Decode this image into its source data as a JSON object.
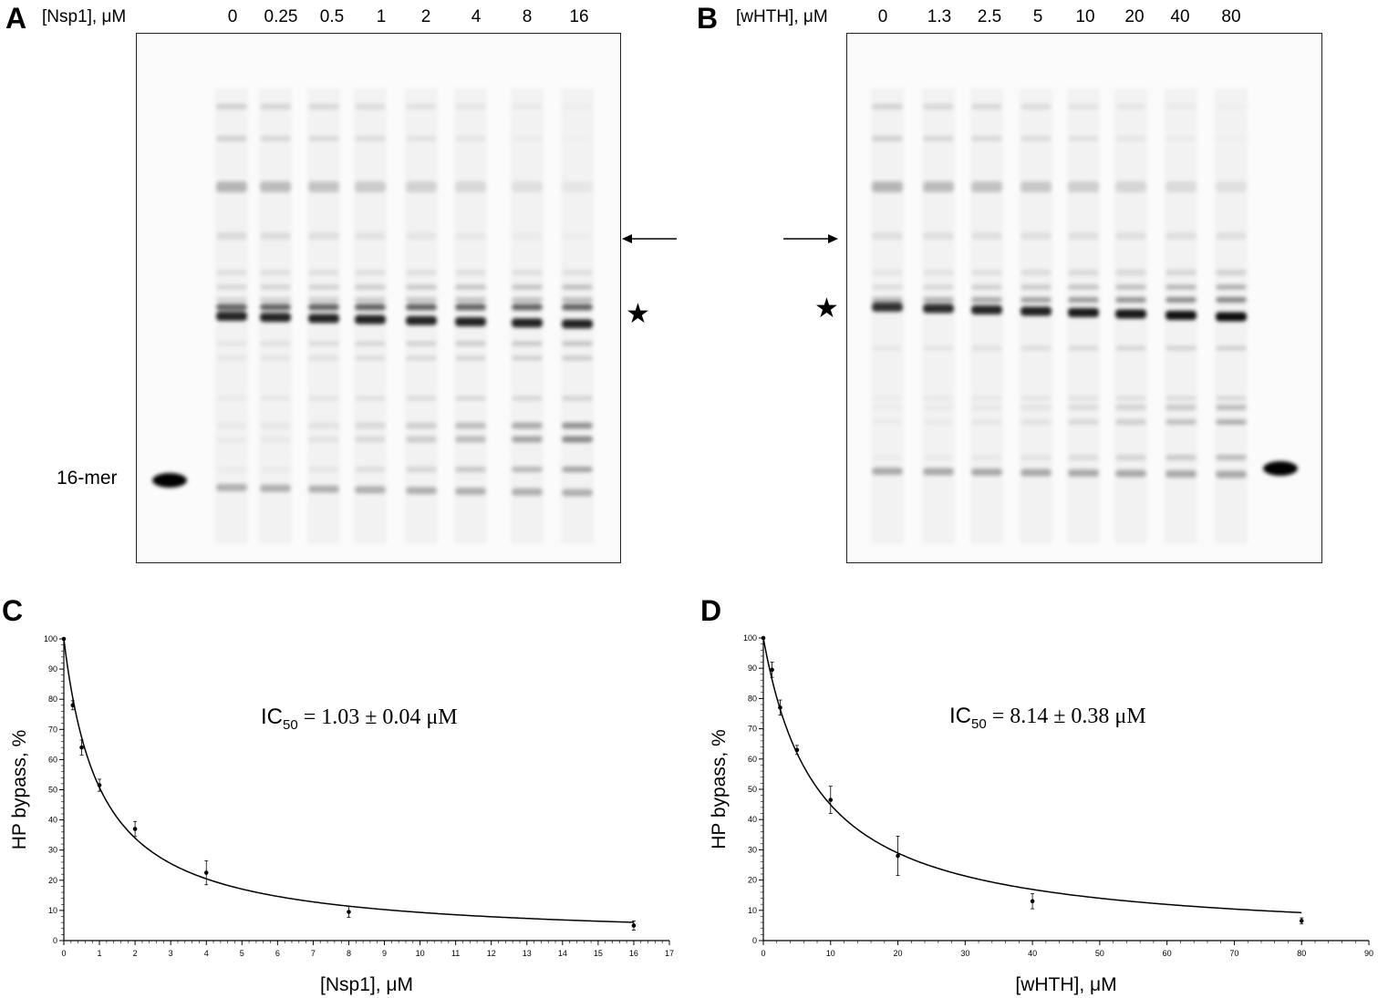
{
  "panels": {
    "A": {
      "letter": "A",
      "conc_label": "[Nsp1], μM",
      "lanes": [
        "0",
        "0.25",
        "0.5",
        "1",
        "2",
        "4",
        "8",
        "16"
      ],
      "marker_label": "16-mer",
      "star": "★"
    },
    "B": {
      "letter": "B",
      "conc_label": "[wHTH], μM",
      "lanes": [
        "0",
        "1.3",
        "2.5",
        "5",
        "10",
        "20",
        "40",
        "80"
      ],
      "star": "★"
    },
    "C": {
      "letter": "C"
    },
    "D": {
      "letter": "D"
    }
  },
  "chart_data": [
    {
      "panel": "C",
      "type": "scatter",
      "xlabel": "[Nsp1], μM",
      "ylabel": "HP bypass, %",
      "xlim": [
        0,
        17
      ],
      "ylim": [
        0,
        100
      ],
      "xticks": [
        0,
        1,
        2,
        3,
        4,
        5,
        6,
        7,
        8,
        9,
        10,
        11,
        12,
        13,
        14,
        15,
        16,
        17
      ],
      "yticks": [
        0,
        10,
        20,
        30,
        40,
        50,
        60,
        70,
        80,
        90,
        100
      ],
      "annotation": {
        "prefix": "IC",
        "subscript": "50",
        "suffix": " = 1.03 ± 0.04 μM"
      },
      "ic50": 1.03,
      "points": [
        {
          "x": 0,
          "y": 100,
          "err": 0
        },
        {
          "x": 0.25,
          "y": 78,
          "err": 1.5
        },
        {
          "x": 0.5,
          "y": 64,
          "err": 2.5
        },
        {
          "x": 1,
          "y": 51.5,
          "err": 2
        },
        {
          "x": 2,
          "y": 37,
          "err": 2.5
        },
        {
          "x": 4,
          "y": 22.5,
          "err": 4
        },
        {
          "x": 8,
          "y": 9.5,
          "err": 1.8
        },
        {
          "x": 16,
          "y": 5,
          "err": 1.5
        }
      ],
      "grid": false
    },
    {
      "panel": "D",
      "type": "scatter",
      "xlabel": "[wHTH], μM",
      "ylabel": "HP bypass, %",
      "xlim": [
        0,
        90
      ],
      "ylim": [
        0,
        100
      ],
      "xticks": [
        0,
        10,
        20,
        30,
        40,
        50,
        60,
        70,
        80,
        90
      ],
      "yticks": [
        0,
        10,
        20,
        30,
        40,
        50,
        60,
        70,
        80,
        90,
        100
      ],
      "annotation": {
        "prefix": "IC",
        "subscript": "50",
        "suffix": " = 8.14 ± 0.38 μM"
      },
      "ic50": 8.14,
      "points": [
        {
          "x": 0,
          "y": 100,
          "err": 0
        },
        {
          "x": 1.3,
          "y": 89.5,
          "err": 2.5
        },
        {
          "x": 2.5,
          "y": 77,
          "err": 2.5
        },
        {
          "x": 5,
          "y": 63,
          "err": 1.5
        },
        {
          "x": 10,
          "y": 46.5,
          "err": 4.5
        },
        {
          "x": 20,
          "y": 28,
          "err": 6.5
        },
        {
          "x": 40,
          "y": 13,
          "err": 2.5
        },
        {
          "x": 80,
          "y": 6.5,
          "err": 1
        }
      ],
      "grid": false
    }
  ]
}
